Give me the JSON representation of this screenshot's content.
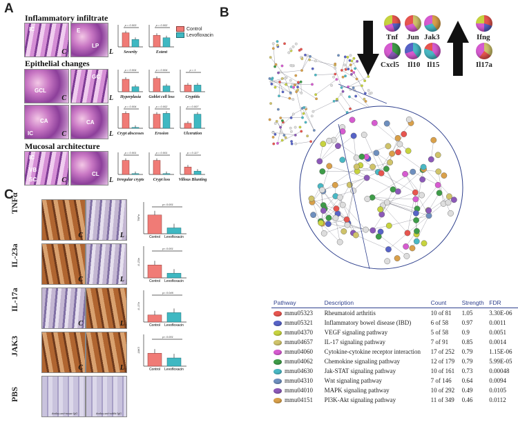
{
  "panels": {
    "a": "A",
    "b": "B",
    "c": "C"
  },
  "panel_a": {
    "sections": [
      "Inflammatory infiltrate",
      "Epithelial changes",
      "Mucosal architecture"
    ],
    "legend": {
      "control": "Control",
      "levofloxacin": "Levofloxacin",
      "control_color": "#f07b76",
      "levo_color": "#3fb8c2"
    },
    "image_labels": {
      "c": "C",
      "l": "L"
    },
    "structures": [
      "IC",
      "E",
      "LP",
      "GCL",
      "GC",
      "CA",
      "IC",
      "CA",
      "VB",
      "SC",
      "CL"
    ],
    "charts": [
      {
        "label": "Severity",
        "pval": "p = 0.003",
        "values": [
          0.85,
          0.45
        ]
      },
      {
        "label": "Extent",
        "pval": "p = 0.002",
        "values": [
          0.7,
          0.55
        ]
      },
      {
        "label": "Hyperplasia",
        "pval": "p = 0.004",
        "values": [
          0.75,
          0.3
        ]
      },
      {
        "label": "Goblet cell loss",
        "pval": "p = 0.004",
        "values": [
          0.8,
          0.35
        ]
      },
      {
        "label": "Cryptitis",
        "pval": "p = 1",
        "values": [
          0.4,
          0.4
        ]
      },
      {
        "label": "Crypt abscesses",
        "pval": "p = 0.004",
        "values": [
          0.9,
          0.05
        ]
      },
      {
        "label": "Erosion",
        "pval": "p = 0.002",
        "values": [
          0.85,
          0.9
        ]
      },
      {
        "label": "Ulceration",
        "pval": "p = 0.007",
        "values": [
          0.3,
          0.85
        ]
      },
      {
        "label": "Irregular crypts",
        "pval": "p = 0.001",
        "values": [
          0.85,
          0.05
        ]
      },
      {
        "label": "Crypt loss",
        "pval": "p = 0.001",
        "values": [
          0.85,
          0.05
        ]
      },
      {
        "label": "Villous Blunting",
        "pval": "p = 0.117",
        "values": [
          0.45,
          0.2
        ]
      }
    ]
  },
  "panel_b": {
    "down_genes": [
      "Tnf",
      "Jun",
      "Jak3",
      "Cxcl5",
      "Il10",
      "Il15"
    ],
    "up_genes": [
      "Ifng",
      "Il17a"
    ],
    "table": {
      "headers": [
        "Pathway",
        "Description",
        "Count",
        "Strength",
        "FDR"
      ],
      "rows": [
        {
          "id": "mmu05323",
          "desc": "Rheumatoid arthritis",
          "count": "10 of 81",
          "strength": "1.05",
          "fdr": "3.30E-06",
          "color": "#e7554f"
        },
        {
          "id": "mmu05321",
          "desc": "Inflammatory bowel disease (IBD)",
          "count": "6 of 58",
          "strength": "0.97",
          "fdr": "0.0011",
          "color": "#5763c7"
        },
        {
          "id": "mmu04370",
          "desc": "VEGF signaling pathway",
          "count": "5 of 58",
          "strength": "0.9",
          "fdr": "0.0051",
          "color": "#c7d33f"
        },
        {
          "id": "mmu04657",
          "desc": "IL-17 signaling pathway",
          "count": "7 of 91",
          "strength": "0.85",
          "fdr": "0.0014",
          "color": "#cfc36a"
        },
        {
          "id": "mmu04060",
          "desc": "Cytokine-cytokine receptor interaction",
          "count": "17 of 252",
          "strength": "0.79",
          "fdr": "1.15E-06",
          "color": "#d65bd0"
        },
        {
          "id": "mmu04062",
          "desc": "Chemokine signaling pathway",
          "count": "12 of 179",
          "strength": "0.79",
          "fdr": "5.99E-05",
          "color": "#3e9c48"
        },
        {
          "id": "mmu04630",
          "desc": "Jak-STAT signaling pathway",
          "count": "10 of 161",
          "strength": "0.73",
          "fdr": "0.00048",
          "color": "#49b8c4"
        },
        {
          "id": "mmu04310",
          "desc": "Wnt signaling pathway",
          "count": "7 of 146",
          "strength": "0.64",
          "fdr": "0.0094",
          "color": "#6e8fbe"
        },
        {
          "id": "mmu04010",
          "desc": "MAPK signaling pathway",
          "count": "10 of 292",
          "strength": "0.49",
          "fdr": "0.0105",
          "color": "#8c59b8"
        },
        {
          "id": "mmu04151",
          "desc": "PI3K-Akt signaling pathway",
          "count": "11 of 349",
          "strength": "0.46",
          "fdr": "0.0112",
          "color": "#d9a04a"
        }
      ]
    }
  },
  "panel_c": {
    "rows": [
      {
        "label": "TNFα",
        "pval": "p< 0.001",
        "ylabel": "TNFα"
      },
      {
        "label": "IL-23a",
        "pval": "p< 0.001",
        "ylabel": "IL-23a"
      },
      {
        "label": "IL-17a",
        "pval": "p= 0.046",
        "ylabel": "IL-17a"
      },
      {
        "label": "JAK3",
        "pval": "p< 0.001",
        "ylabel": "JAK3"
      },
      {
        "label": "PBS",
        "pval": "",
        "ylabel": ""
      }
    ],
    "x_categories": [
      "Control",
      "Levofloxacin"
    ],
    "values": [
      [
        0.8,
        0.25
      ],
      [
        0.55,
        0.2
      ],
      [
        0.3,
        0.4
      ],
      [
        0.55,
        0.35
      ]
    ],
    "pbs_captions": [
      "donkey anti-mouse IgG",
      "donkey anti-rabbit IgG"
    ],
    "image_labels": {
      "c": "C",
      "l": "L"
    }
  }
}
